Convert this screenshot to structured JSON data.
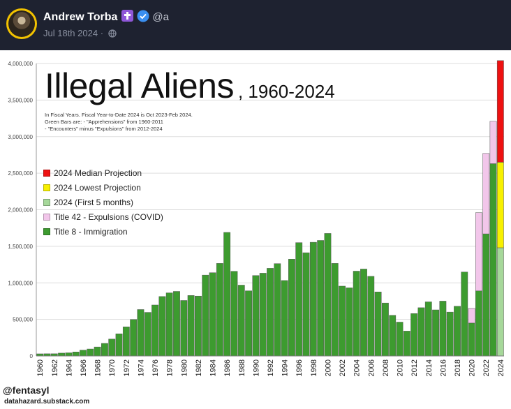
{
  "post": {
    "author": "Andrew Torba",
    "handle": "@a",
    "date": "Jul 18th 2024",
    "separator": "·",
    "icons": [
      "cross-badge-icon",
      "verified-icon",
      "globe-icon"
    ]
  },
  "chart_card": {
    "title_main": "Illegal Aliens",
    "title_years": ", 1960-2024",
    "note_lines": [
      "In Fiscal Years. Fiscal Year-to-Date 2024 is Oct 2023-Feb 2024.",
      "Green Bars are:   - \"Apprehensions\" from 1960-2011",
      "     - \"Encounters\" minus \"Expulsions\" from 2012-2024"
    ],
    "credit_handle": "@fentasyl",
    "credit_site": "datahazard.substack.com"
  },
  "chart_data": {
    "type": "bar",
    "stacked": true,
    "title": "Illegal Aliens, 1960-2024",
    "ylim": [
      0,
      4000000
    ],
    "yticks": [
      0,
      500000,
      1000000,
      1500000,
      2000000,
      2500000,
      3000000,
      3500000,
      4000000
    ],
    "ytick_labels": [
      "0",
      "500,000",
      "1,000,000",
      "1,500,000",
      "2,000,000",
      "2,500,000",
      "3,000,000",
      "3,500,000",
      "4,000,000"
    ],
    "grid": true,
    "legend_position": "left",
    "categories": [
      1960,
      1961,
      1962,
      1963,
      1964,
      1965,
      1966,
      1967,
      1968,
      1969,
      1970,
      1971,
      1972,
      1973,
      1974,
      1975,
      1976,
      1977,
      1978,
      1979,
      1980,
      1981,
      1982,
      1983,
      1984,
      1985,
      1986,
      1987,
      1988,
      1989,
      1990,
      1991,
      1992,
      1993,
      1994,
      1995,
      1996,
      1997,
      1998,
      1999,
      2000,
      2001,
      2002,
      2003,
      2004,
      2005,
      2006,
      2007,
      2008,
      2009,
      2010,
      2011,
      2012,
      2013,
      2014,
      2015,
      2016,
      2017,
      2018,
      2019,
      2020,
      2021,
      2022,
      2023,
      2024
    ],
    "xtick_labels": [
      "1960",
      "1962",
      "1964",
      "1966",
      "1968",
      "1970",
      "1972",
      "1974",
      "1976",
      "1978",
      "1980",
      "1982",
      "1984",
      "1986",
      "1988",
      "1990",
      "1992",
      "1994",
      "1996",
      "1998",
      "2000",
      "2002",
      "2004",
      "2006",
      "2008",
      "2010",
      "2012",
      "2014",
      "2016",
      "2018",
      "2020",
      "2022",
      "2024"
    ],
    "series": [
      {
        "name": "Title 8 - Immigration",
        "color": "#3d9b2f",
        "values": [
          29000,
          30000,
          30000,
          39000,
          43000,
          55000,
          80000,
          95000,
          123000,
          172000,
          231000,
          303000,
          398000,
          499000,
          635000,
          596000,
          697000,
          813000,
          863000,
          883000,
          759000,
          827000,
          819000,
          1106000,
          1139000,
          1266000,
          1690000,
          1158000,
          969000,
          891000,
          1100000,
          1132000,
          1199000,
          1263000,
          1032000,
          1324000,
          1550000,
          1412000,
          1555000,
          1580000,
          1676000,
          1266000,
          955000,
          932000,
          1160000,
          1189000,
          1089000,
          876000,
          724000,
          556000,
          463000,
          340000,
          580000,
          660000,
          740000,
          630000,
          750000,
          600000,
          680000,
          1148000,
          450000,
          890000,
          1670000,
          2630000,
          0
        ]
      },
      {
        "name": "Title 42 - Expulsions (COVID)",
        "color": "#f2c6ea",
        "values": [
          0,
          0,
          0,
          0,
          0,
          0,
          0,
          0,
          0,
          0,
          0,
          0,
          0,
          0,
          0,
          0,
          0,
          0,
          0,
          0,
          0,
          0,
          0,
          0,
          0,
          0,
          0,
          0,
          0,
          0,
          0,
          0,
          0,
          0,
          0,
          0,
          0,
          0,
          0,
          0,
          0,
          0,
          0,
          0,
          0,
          0,
          0,
          0,
          0,
          0,
          0,
          0,
          0,
          0,
          0,
          0,
          0,
          0,
          0,
          0,
          200000,
          1070000,
          1100000,
          580000,
          0
        ]
      },
      {
        "name": "2024 (First 5 months)",
        "color": "#a6d89a",
        "values": [
          0,
          0,
          0,
          0,
          0,
          0,
          0,
          0,
          0,
          0,
          0,
          0,
          0,
          0,
          0,
          0,
          0,
          0,
          0,
          0,
          0,
          0,
          0,
          0,
          0,
          0,
          0,
          0,
          0,
          0,
          0,
          0,
          0,
          0,
          0,
          0,
          0,
          0,
          0,
          0,
          0,
          0,
          0,
          0,
          0,
          0,
          0,
          0,
          0,
          0,
          0,
          0,
          0,
          0,
          0,
          0,
          0,
          0,
          0,
          0,
          0,
          0,
          0,
          0,
          1480000
        ]
      },
      {
        "name": "2024 Lowest Projection",
        "color": "#f7f000",
        "values": [
          0,
          0,
          0,
          0,
          0,
          0,
          0,
          0,
          0,
          0,
          0,
          0,
          0,
          0,
          0,
          0,
          0,
          0,
          0,
          0,
          0,
          0,
          0,
          0,
          0,
          0,
          0,
          0,
          0,
          0,
          0,
          0,
          0,
          0,
          0,
          0,
          0,
          0,
          0,
          0,
          0,
          0,
          0,
          0,
          0,
          0,
          0,
          0,
          0,
          0,
          0,
          0,
          0,
          0,
          0,
          0,
          0,
          0,
          0,
          0,
          0,
          0,
          0,
          0,
          1170000
        ]
      },
      {
        "name": "2024 Median Projection",
        "color": "#ee1111",
        "values": [
          0,
          0,
          0,
          0,
          0,
          0,
          0,
          0,
          0,
          0,
          0,
          0,
          0,
          0,
          0,
          0,
          0,
          0,
          0,
          0,
          0,
          0,
          0,
          0,
          0,
          0,
          0,
          0,
          0,
          0,
          0,
          0,
          0,
          0,
          0,
          0,
          0,
          0,
          0,
          0,
          0,
          0,
          0,
          0,
          0,
          0,
          0,
          0,
          0,
          0,
          0,
          0,
          0,
          0,
          0,
          0,
          0,
          0,
          0,
          0,
          0,
          0,
          0,
          0,
          1390000
        ]
      }
    ],
    "legend_order": [
      "2024 Median Projection",
      "2024 Lowest Projection",
      "2024 (First 5 months)",
      "Title 42 - Expulsions (COVID)",
      "Title 8 - Immigration"
    ]
  }
}
